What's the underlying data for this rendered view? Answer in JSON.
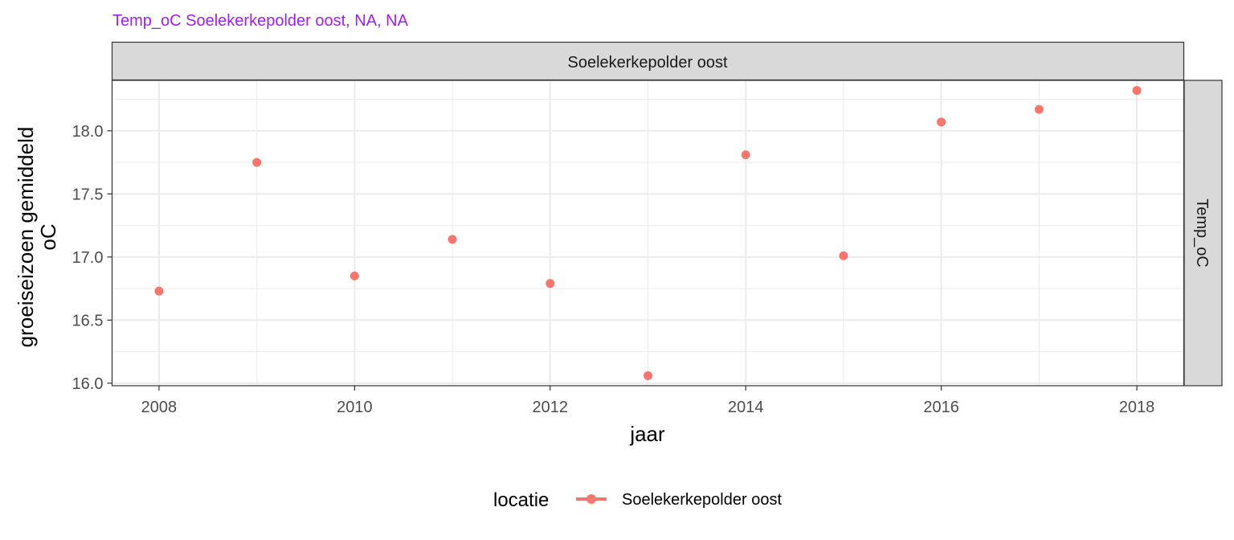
{
  "chart_data": {
    "type": "scatter",
    "title": "Temp_oC Soelekerkepolder oost, NA, NA",
    "title_color": "#A020F0",
    "facet_top": "Soelekerkepolder oost",
    "facet_right": "Temp_oC",
    "xlabel": "jaar",
    "ylabel_lines": [
      "groeiseizoen gemiddeld",
      "oC"
    ],
    "xlim": [
      2007.52,
      2018.48
    ],
    "ylim": [
      15.98,
      18.4
    ],
    "x_ticks": [
      2008,
      2010,
      2012,
      2014,
      2016,
      2018
    ],
    "y_ticks": [
      16.0,
      16.5,
      17.0,
      17.5,
      18.0
    ],
    "y_tick_labels": [
      "16.0",
      "16.5",
      "17.0",
      "17.5",
      "18.0"
    ],
    "grid": true,
    "legend": {
      "title": "locatie",
      "position": "bottom"
    },
    "series": [
      {
        "name": "Soelekerkepolder oost",
        "color": "#F8766D",
        "x": [
          2008,
          2009,
          2010,
          2011,
          2012,
          2013,
          2014,
          2015,
          2016,
          2017,
          2018
        ],
        "y": [
          16.73,
          17.75,
          16.85,
          17.14,
          16.79,
          16.06,
          17.81,
          17.01,
          18.07,
          18.17,
          18.32
        ]
      }
    ]
  }
}
